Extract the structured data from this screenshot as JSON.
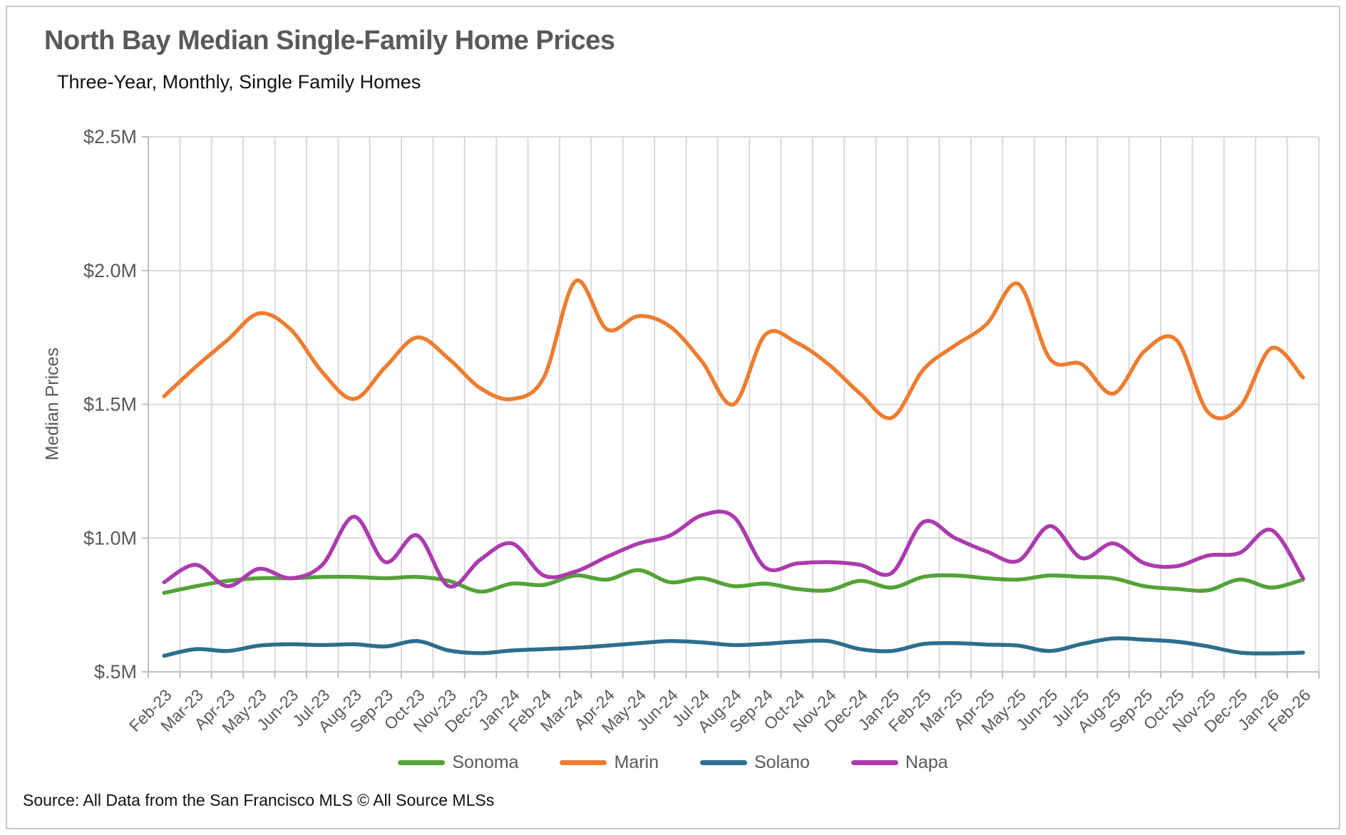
{
  "header": {
    "title": "North Bay Median Single-Family Home Prices",
    "subtitle": "Three-Year, Monthly, Single Family Homes"
  },
  "source_note": "Source: All Data from the San Francisco MLS © All Source MLSs",
  "chart_data": {
    "type": "line",
    "smooth": true,
    "grid": true,
    "legend_position": "bottom",
    "title": "North Bay Median Single-Family Home Prices",
    "subtitle": "Three-Year, Monthly, Single Family Homes",
    "ylabel": "Median Prices",
    "xlabel": "",
    "ylim": [
      0.5,
      2.5
    ],
    "y_ticks": [
      {
        "label": "$2.5M",
        "value": 2.5
      },
      {
        "label": "$2.0M",
        "value": 2.0
      },
      {
        "label": "$1.5M",
        "value": 1.5
      },
      {
        "label": "$1.0M",
        "value": 1.0
      },
      {
        "label": "$.5M",
        "value": 0.5
      }
    ],
    "unit": "millions USD",
    "categories": [
      "Feb-23",
      "Mar-23",
      "Apr-23",
      "May-23",
      "Jun-23",
      "Jul-23",
      "Aug-23",
      "Sep-23",
      "Oct-23",
      "Nov-23",
      "Dec-23",
      "Jan-24",
      "Feb-24",
      "Mar-24",
      "Apr-24",
      "May-24",
      "Jun-24",
      "Jul-24",
      "Aug-24",
      "Sep-24",
      "Oct-24",
      "Nov-24",
      "Dec-24",
      "Jan-25",
      "Feb-25",
      "Mar-25",
      "Apr-25",
      "May-25",
      "Jun-25",
      "Jul-25",
      "Aug-25",
      "Sep-25",
      "Oct-25",
      "Nov-25",
      "Dec-25",
      "Jan-26",
      "Feb-26"
    ],
    "series": [
      {
        "name": "Sonoma",
        "color": "#53A337",
        "values": [
          0.795,
          0.82,
          0.84,
          0.85,
          0.85,
          0.855,
          0.855,
          0.85,
          0.855,
          0.84,
          0.8,
          0.83,
          0.825,
          0.86,
          0.845,
          0.88,
          0.835,
          0.85,
          0.82,
          0.83,
          0.81,
          0.805,
          0.84,
          0.815,
          0.855,
          0.86,
          0.85,
          0.845,
          0.86,
          0.855,
          0.85,
          0.82,
          0.81,
          0.805,
          0.845,
          0.815,
          0.845
        ]
      },
      {
        "name": "Marin",
        "color": "#ED7D31",
        "values": [
          1.53,
          1.64,
          1.74,
          1.84,
          1.78,
          1.62,
          1.52,
          1.64,
          1.75,
          1.67,
          1.56,
          1.52,
          1.6,
          1.96,
          1.78,
          1.83,
          1.79,
          1.66,
          1.5,
          1.76,
          1.73,
          1.65,
          1.54,
          1.45,
          1.63,
          1.72,
          1.8,
          1.95,
          1.67,
          1.65,
          1.54,
          1.7,
          1.74,
          1.47,
          1.49,
          1.71,
          1.6
        ]
      },
      {
        "name": "Solano",
        "color": "#2D6E8E",
        "values": [
          0.56,
          0.585,
          0.578,
          0.598,
          0.603,
          0.6,
          0.603,
          0.595,
          0.615,
          0.58,
          0.57,
          0.58,
          0.585,
          0.59,
          0.598,
          0.607,
          0.615,
          0.61,
          0.6,
          0.605,
          0.613,
          0.615,
          0.585,
          0.578,
          0.604,
          0.607,
          0.602,
          0.598,
          0.578,
          0.604,
          0.625,
          0.62,
          0.613,
          0.595,
          0.572,
          0.569,
          0.572
        ]
      },
      {
        "name": "Napa",
        "color": "#AC3CAD",
        "values": [
          0.835,
          0.9,
          0.82,
          0.885,
          0.85,
          0.9,
          1.08,
          0.91,
          1.01,
          0.82,
          0.92,
          0.98,
          0.86,
          0.875,
          0.93,
          0.98,
          1.01,
          1.085,
          1.08,
          0.89,
          0.905,
          0.91,
          0.9,
          0.87,
          1.06,
          1.0,
          0.95,
          0.915,
          1.045,
          0.925,
          0.98,
          0.905,
          0.895,
          0.935,
          0.945,
          1.03,
          0.85
        ]
      }
    ],
    "colors": {
      "grid": "#D9D9D9",
      "axis": "#BFBFBF",
      "tick_text": "#595959",
      "title_text": "#595959"
    }
  }
}
